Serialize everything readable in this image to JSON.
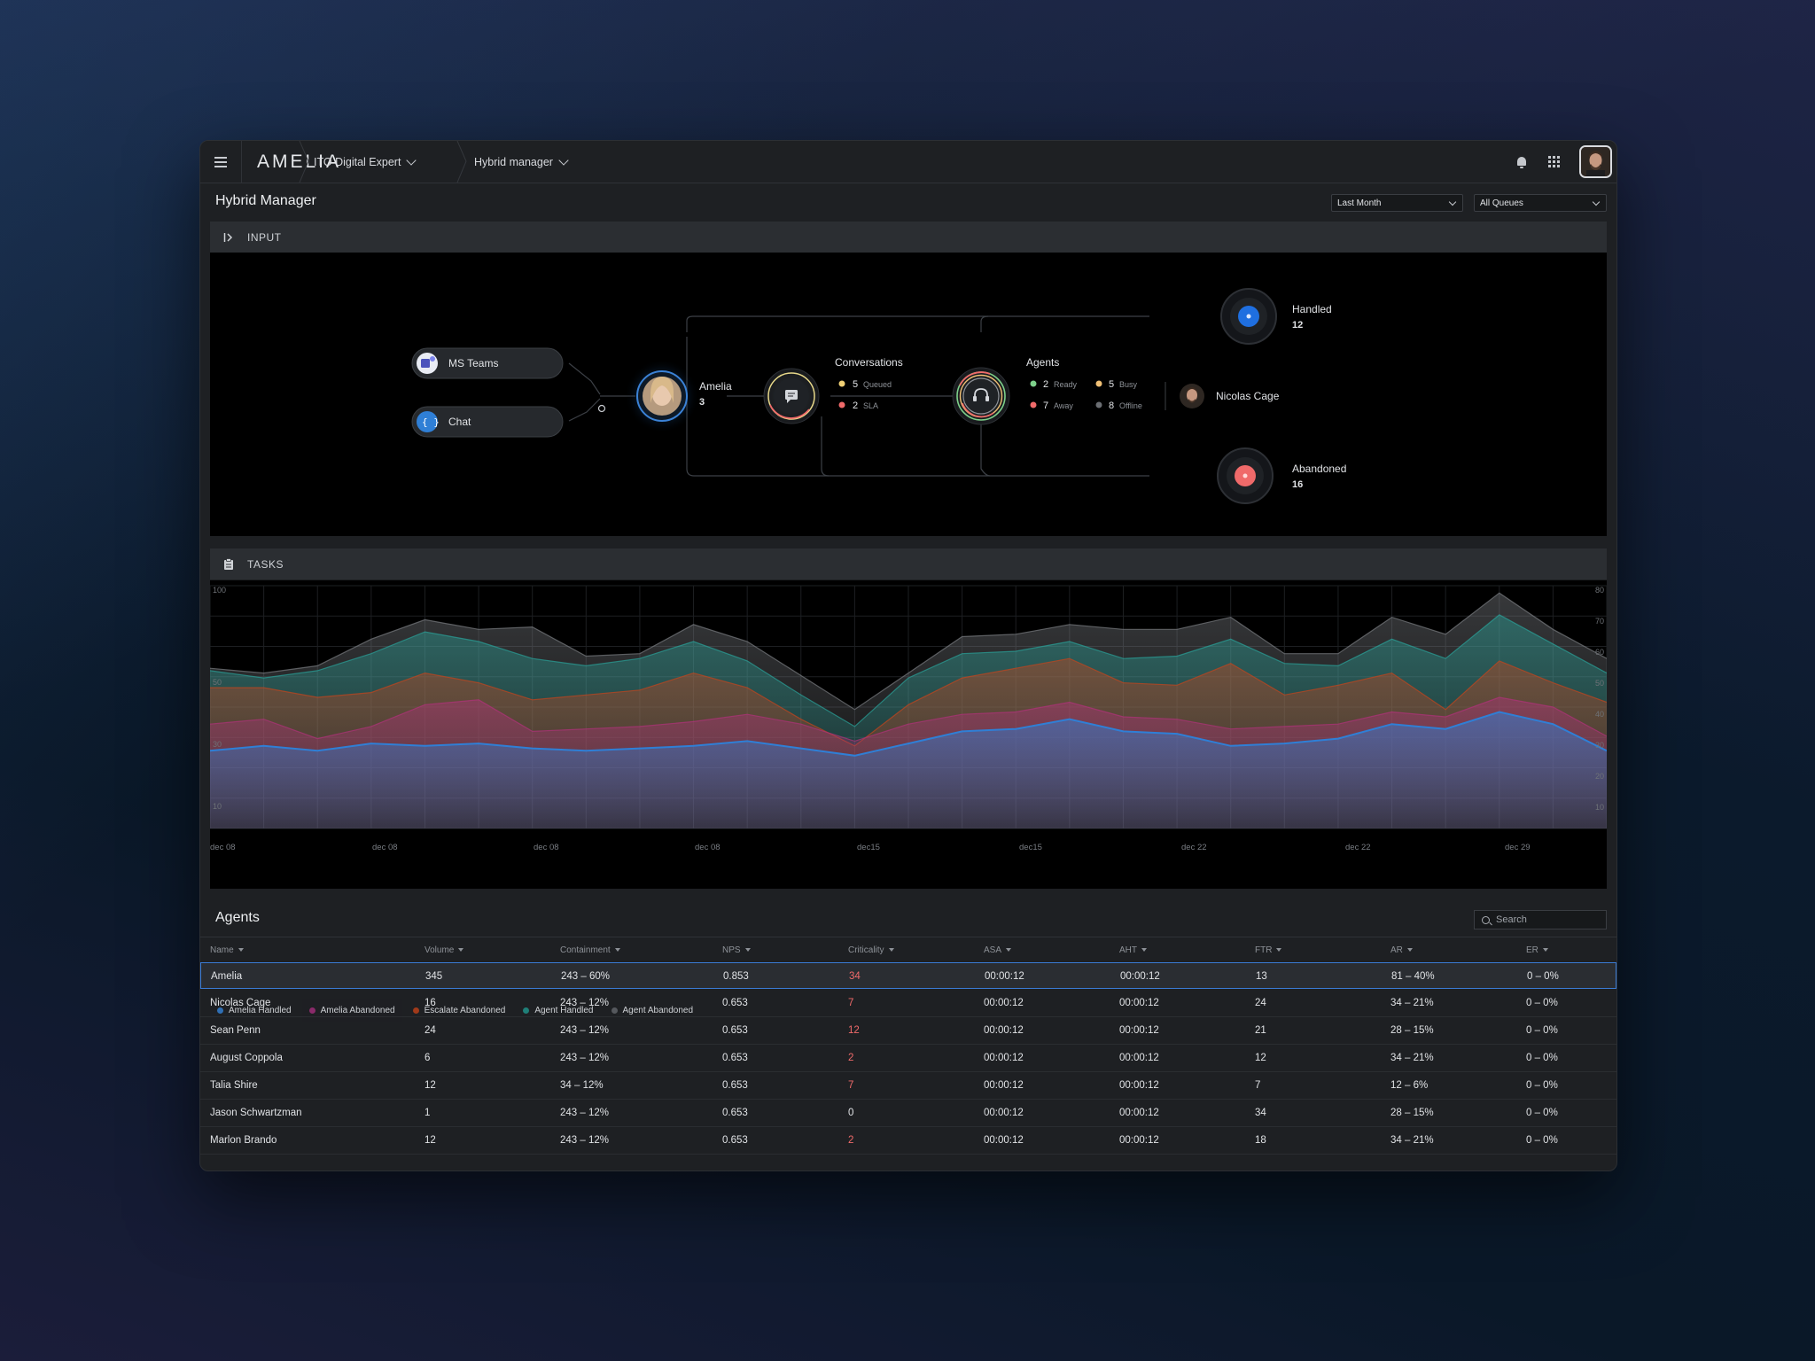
{
  "header": {
    "logo": "AMELIA",
    "breadcrumb_1": "ITO Digital Expert",
    "breadcrumb_2": "Hybrid manager"
  },
  "page": {
    "title": "Hybrid Manager",
    "period_select": "Last Month",
    "queue_select": "All Queues"
  },
  "input_panel": {
    "title": "INPUT",
    "channels": [
      {
        "label": "MS Teams",
        "icon": "ms-teams-icon"
      },
      {
        "label": "Chat",
        "icon": "chat-braces-icon"
      }
    ],
    "amelia": {
      "label": "Amelia",
      "count": "3"
    },
    "conversations": {
      "label": "Conversations",
      "queued_count": "5",
      "queued_label": "Queued",
      "sla_count": "2",
      "sla_label": "SLA"
    },
    "agents": {
      "label": "Agents",
      "ready_count": "2",
      "ready_label": "Ready",
      "busy_count": "5",
      "busy_label": "Busy",
      "away_count": "7",
      "away_label": "Away",
      "offline_count": "8",
      "offline_label": "Offline"
    },
    "agent_name": "Nicolas Cage",
    "handled": {
      "label": "Handled",
      "count": "12"
    },
    "abandoned": {
      "label": "Abandoned",
      "count": "16"
    }
  },
  "tasks_panel": {
    "title": "TASKS"
  },
  "chart_data": {
    "type": "area",
    "x_tick_labels": [
      "dec 08",
      "dec 08",
      "dec 08",
      "dec 08",
      "dec15",
      "dec15",
      "dec 22",
      "dec 22",
      "dec 29"
    ],
    "y_left_ticks": [
      "100",
      "50",
      "30",
      "10"
    ],
    "y_right_ticks": [
      "80",
      "70",
      "60",
      "50",
      "40",
      "30",
      "20",
      "10"
    ],
    "ylim": [
      0,
      100
    ],
    "series": [
      {
        "name": "Amelia Handled",
        "color": "#2f7fd6",
        "values": [
          32,
          34,
          32,
          35,
          34,
          35,
          33,
          32,
          33,
          34,
          36,
          33,
          30,
          35,
          40,
          41,
          45,
          40,
          39,
          34,
          35,
          37,
          43,
          41,
          48,
          43,
          32
        ]
      },
      {
        "name": "Amelia Abandoned",
        "color": "#b0327a",
        "values": [
          43,
          45,
          37,
          42,
          51,
          53,
          40,
          41,
          42,
          44,
          47,
          43,
          36,
          43,
          47,
          48,
          52,
          46,
          45,
          41,
          42,
          43,
          48,
          46,
          54,
          50,
          38
        ]
      },
      {
        "name": "Escalate Abandoned",
        "color": "#c4451d",
        "values": [
          58,
          58,
          54,
          56,
          64,
          60,
          53,
          55,
          57,
          64,
          58,
          45,
          34,
          51,
          62,
          66,
          70,
          60,
          59,
          68,
          55,
          59,
          64,
          49,
          69,
          60,
          52
        ]
      },
      {
        "name": "Agent Handled",
        "color": "#2aa39a",
        "values": [
          65,
          62,
          65,
          72,
          81,
          77,
          70,
          67,
          70,
          77,
          69,
          55,
          42,
          62,
          72,
          73,
          77,
          70,
          71,
          78,
          68,
          67,
          78,
          70,
          88,
          76,
          64
        ]
      },
      {
        "name": "Agent Abandoned",
        "color": "#7a7d82",
        "values": [
          66,
          64,
          67,
          78,
          86,
          82,
          83,
          71,
          72,
          84,
          77,
          63,
          49,
          64,
          79,
          80,
          84,
          82,
          82,
          87,
          72,
          72,
          87,
          80,
          97,
          82,
          70
        ]
      }
    ],
    "legend_position": "bottom-left",
    "legend_active": "Amelia Abandoned",
    "grid": true
  },
  "agents_table": {
    "title": "Agents",
    "search_placeholder": "Search",
    "columns": [
      "Name",
      "Volume",
      "Containment",
      "NPS",
      "Criticality",
      "ASA",
      "AHT",
      "FTR",
      "AR",
      "ER"
    ],
    "rows": [
      [
        "Amelia",
        "345",
        "243 – 60%",
        "0.853",
        "34",
        "00:00:12",
        "00:00:12",
        "13",
        "81 – 40%",
        "0 – 0%"
      ],
      [
        "Nicolas Cage",
        "16",
        "243 – 12%",
        "0.653",
        "7",
        "00:00:12",
        "00:00:12",
        "24",
        "34 – 21%",
        "0 – 0%"
      ],
      [
        "Sean Penn",
        "24",
        "243 – 12%",
        "0.653",
        "12",
        "00:00:12",
        "00:00:12",
        "21",
        "28 – 15%",
        "0 – 0%"
      ],
      [
        "August Coppola",
        "6",
        "243 – 12%",
        "0.653",
        "2",
        "00:00:12",
        "00:00:12",
        "12",
        "34 – 21%",
        "0 – 0%"
      ],
      [
        "Talia Shire",
        "12",
        "34 – 12%",
        "0.653",
        "7",
        "00:00:12",
        "00:00:12",
        "7",
        "12 – 6%",
        "0 – 0%"
      ],
      [
        "Jason Schwartzman",
        "1",
        "243 – 12%",
        "0.653",
        "0",
        "00:00:12",
        "00:00:12",
        "34",
        "28 – 15%",
        "0 – 0%"
      ],
      [
        "Marlon Brando",
        "12",
        "243 – 12%",
        "0.653",
        "2",
        "00:00:12",
        "00:00:12",
        "18",
        "34 – 21%",
        "0 – 0%"
      ]
    ],
    "criticality_colors": {
      "alert": "#f06a6a",
      "normal": "#e1e3e6"
    }
  }
}
